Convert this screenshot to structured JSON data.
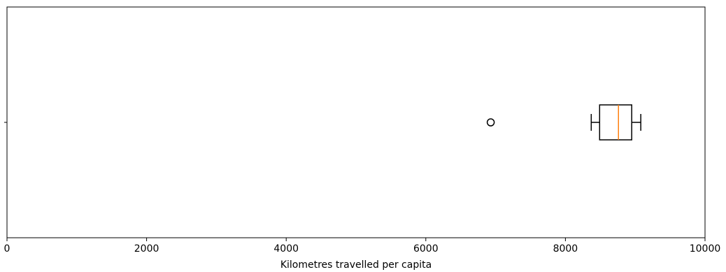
{
  "chart_data": {
    "type": "boxplot",
    "orientation": "horizontal",
    "title": "",
    "xlabel": "Kilometres travelled per capita",
    "ylabel": "",
    "xlim": [
      0,
      10000
    ],
    "xticks": [
      0,
      2000,
      4000,
      6000,
      8000,
      10000
    ],
    "xtick_labels": [
      "0",
      "2000",
      "4000",
      "6000",
      "8000",
      "10000"
    ],
    "grid": false,
    "legend": "none",
    "box": {
      "whisker_low": 8370,
      "q1": 8490,
      "median": 8760,
      "q3": 8950,
      "whisker_high": 9080,
      "outliers": [
        6930
      ]
    },
    "colors": {
      "box": "#000000",
      "median": "#ff7f0e",
      "outlier": "#000000",
      "axes": "#000000"
    }
  }
}
